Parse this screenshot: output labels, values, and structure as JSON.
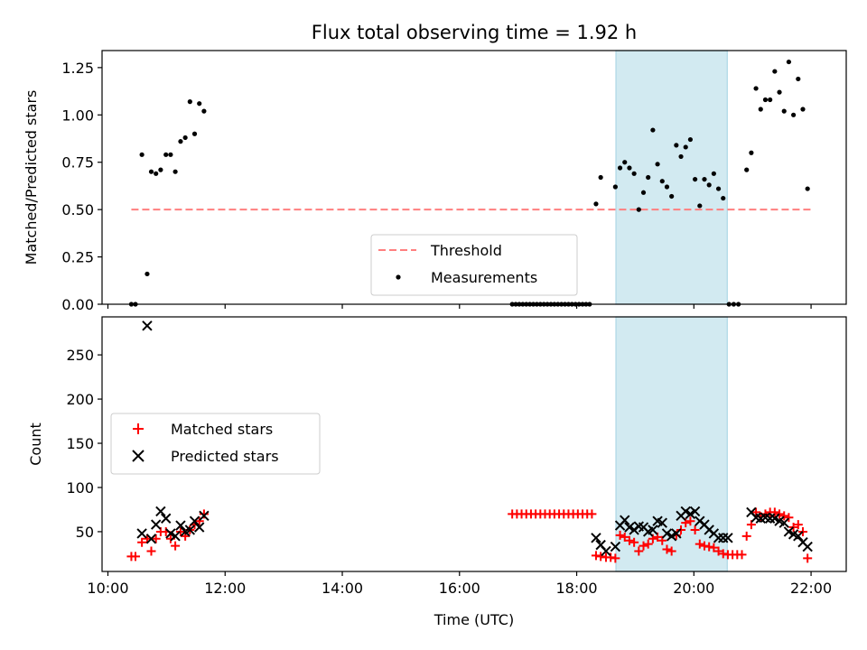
{
  "title": "Flux total observing time = 1.92 h",
  "colors": {
    "threshold": "#ff7f7f",
    "measurements": "#000000",
    "matched": "#ff0000",
    "predicted": "#000000",
    "shade": "#add8e6"
  },
  "chart_data": [
    {
      "type": "scatter",
      "panel": "top",
      "ylabel": "Matched/Predicted stars",
      "xlabel": "",
      "xlim": [
        9.9,
        22.6
      ],
      "ylim": [
        0,
        1.34
      ],
      "yticks": [
        0,
        0.25,
        0.5,
        0.75,
        1.0,
        1.25
      ],
      "ytick_labels": [
        "0.00",
        "0.25",
        "0.50",
        "0.75",
        "1.00",
        "1.25"
      ],
      "xticks": [
        10,
        12,
        14,
        16,
        18,
        20,
        22
      ],
      "shaded_region": [
        18.67,
        20.57
      ],
      "legend": {
        "location": "lower center",
        "entries": [
          {
            "label": "Threshold",
            "kind": "dashed-line",
            "color": "#ff7f7f"
          },
          {
            "label": "Measurements",
            "kind": "dot",
            "color": "#000000"
          }
        ]
      },
      "series": [
        {
          "name": "Threshold",
          "kind": "line",
          "x": [
            10.4,
            22.0
          ],
          "y": [
            0.5,
            0.5
          ]
        },
        {
          "name": "Measurements",
          "kind": "dot",
          "points": [
            [
              10.4,
              0.0
            ],
            [
              10.47,
              0.0
            ],
            [
              10.58,
              0.79
            ],
            [
              10.67,
              0.16
            ],
            [
              10.74,
              0.7
            ],
            [
              10.82,
              0.69
            ],
            [
              10.9,
              0.71
            ],
            [
              10.99,
              0.79
            ],
            [
              11.07,
              0.79
            ],
            [
              11.15,
              0.7
            ],
            [
              11.24,
              0.86
            ],
            [
              11.32,
              0.88
            ],
            [
              11.4,
              1.07
            ],
            [
              11.48,
              0.9
            ],
            [
              11.56,
              1.06
            ],
            [
              11.64,
              1.02
            ],
            [
              16.9,
              0.0
            ],
            [
              16.96,
              0.0
            ],
            [
              17.02,
              0.0
            ],
            [
              17.08,
              0.0
            ],
            [
              17.14,
              0.0
            ],
            [
              17.2,
              0.0
            ],
            [
              17.26,
              0.0
            ],
            [
              17.32,
              0.0
            ],
            [
              17.38,
              0.0
            ],
            [
              17.44,
              0.0
            ],
            [
              17.5,
              0.0
            ],
            [
              17.56,
              0.0
            ],
            [
              17.62,
              0.0
            ],
            [
              17.68,
              0.0
            ],
            [
              17.74,
              0.0
            ],
            [
              17.8,
              0.0
            ],
            [
              17.86,
              0.0
            ],
            [
              17.92,
              0.0
            ],
            [
              17.98,
              0.0
            ],
            [
              18.04,
              0.0
            ],
            [
              18.1,
              0.0
            ],
            [
              18.16,
              0.0
            ],
            [
              18.22,
              0.0
            ],
            [
              18.33,
              0.53
            ],
            [
              18.41,
              0.67
            ],
            [
              18.66,
              0.62
            ],
            [
              18.74,
              0.72
            ],
            [
              18.82,
              0.75
            ],
            [
              18.9,
              0.72
            ],
            [
              18.98,
              0.69
            ],
            [
              19.06,
              0.5
            ],
            [
              19.14,
              0.59
            ],
            [
              19.22,
              0.67
            ],
            [
              19.3,
              0.92
            ],
            [
              19.38,
              0.74
            ],
            [
              19.46,
              0.65
            ],
            [
              19.54,
              0.62
            ],
            [
              19.62,
              0.57
            ],
            [
              19.7,
              0.84
            ],
            [
              19.78,
              0.78
            ],
            [
              19.86,
              0.83
            ],
            [
              19.94,
              0.87
            ],
            [
              20.02,
              0.66
            ],
            [
              20.1,
              0.52
            ],
            [
              20.18,
              0.66
            ],
            [
              20.26,
              0.63
            ],
            [
              20.34,
              0.69
            ],
            [
              20.42,
              0.61
            ],
            [
              20.5,
              0.56
            ],
            [
              20.6,
              0.0
            ],
            [
              20.68,
              0.0
            ],
            [
              20.76,
              0.0
            ],
            [
              20.9,
              0.71
            ],
            [
              20.98,
              0.8
            ],
            [
              21.06,
              1.14
            ],
            [
              21.14,
              1.03
            ],
            [
              21.22,
              1.08
            ],
            [
              21.3,
              1.08
            ],
            [
              21.38,
              1.23
            ],
            [
              21.46,
              1.12
            ],
            [
              21.54,
              1.02
            ],
            [
              21.62,
              1.28
            ],
            [
              21.7,
              1.0
            ],
            [
              21.78,
              1.19
            ],
            [
              21.86,
              1.03
            ],
            [
              21.94,
              0.61
            ]
          ]
        }
      ]
    },
    {
      "type": "scatter",
      "panel": "bottom",
      "ylabel": "Count",
      "xlabel": "Time (UTC)",
      "xlim": [
        9.9,
        22.6
      ],
      "ylim": [
        5,
        293
      ],
      "yticks": [
        50,
        100,
        150,
        200,
        250
      ],
      "ytick_labels": [
        "50",
        "100",
        "150",
        "200",
        "250"
      ],
      "xticks": [
        10,
        12,
        14,
        16,
        18,
        20,
        22
      ],
      "xtick_labels": [
        "10:00",
        "12:00",
        "14:00",
        "16:00",
        "18:00",
        "20:00",
        "22:00"
      ],
      "shaded_region": [
        18.67,
        20.57
      ],
      "legend": {
        "location": "center left",
        "entries": [
          {
            "label": "Matched stars",
            "kind": "plus",
            "color": "#ff0000"
          },
          {
            "label": "Predicted stars",
            "kind": "x",
            "color": "#000000"
          }
        ]
      },
      "series": [
        {
          "name": "Matched stars",
          "kind": "plus",
          "points": [
            [
              10.4,
              22
            ],
            [
              10.47,
              22
            ],
            [
              10.58,
              38
            ],
            [
              10.67,
              42
            ],
            [
              10.74,
              28
            ],
            [
              10.82,
              42
            ],
            [
              10.9,
              50
            ],
            [
              10.99,
              50
            ],
            [
              11.07,
              42
            ],
            [
              11.15,
              34
            ],
            [
              11.24,
              50
            ],
            [
              11.32,
              45
            ],
            [
              11.4,
              52
            ],
            [
              11.48,
              58
            ],
            [
              11.56,
              62
            ],
            [
              11.64,
              70
            ],
            [
              16.9,
              70
            ],
            [
              16.98,
              70
            ],
            [
              17.06,
              70
            ],
            [
              17.14,
              70
            ],
            [
              17.22,
              70
            ],
            [
              17.3,
              70
            ],
            [
              17.38,
              70
            ],
            [
              17.46,
              70
            ],
            [
              17.54,
              70
            ],
            [
              17.62,
              70
            ],
            [
              17.7,
              70
            ],
            [
              17.78,
              70
            ],
            [
              17.86,
              70
            ],
            [
              17.94,
              70
            ],
            [
              18.02,
              70
            ],
            [
              18.1,
              70
            ],
            [
              18.18,
              70
            ],
            [
              18.26,
              70
            ],
            [
              18.33,
              23
            ],
            [
              18.41,
              22
            ],
            [
              18.5,
              21
            ],
            [
              18.58,
              21
            ],
            [
              18.66,
              20
            ],
            [
              18.74,
              46
            ],
            [
              18.82,
              44
            ],
            [
              18.9,
              40
            ],
            [
              18.98,
              38
            ],
            [
              19.06,
              28
            ],
            [
              19.14,
              34
            ],
            [
              19.22,
              36
            ],
            [
              19.3,
              42
            ],
            [
              19.38,
              44
            ],
            [
              19.46,
              40
            ],
            [
              19.54,
              30
            ],
            [
              19.62,
              28
            ],
            [
              19.7,
              46
            ],
            [
              19.78,
              52
            ],
            [
              19.86,
              60
            ],
            [
              19.94,
              62
            ],
            [
              20.02,
              52
            ],
            [
              20.1,
              36
            ],
            [
              20.18,
              34
            ],
            [
              20.26,
              33
            ],
            [
              20.34,
              32
            ],
            [
              20.42,
              28
            ],
            [
              20.5,
              25
            ],
            [
              20.58,
              24
            ],
            [
              20.66,
              24
            ],
            [
              20.74,
              24
            ],
            [
              20.82,
              24
            ],
            [
              20.9,
              45
            ],
            [
              20.98,
              58
            ],
            [
              21.06,
              72
            ],
            [
              21.14,
              67
            ],
            [
              21.22,
              70
            ],
            [
              21.3,
              72
            ],
            [
              21.38,
              72
            ],
            [
              21.46,
              70
            ],
            [
              21.54,
              68
            ],
            [
              21.62,
              66
            ],
            [
              21.7,
              55
            ],
            [
              21.78,
              58
            ],
            [
              21.86,
              50
            ],
            [
              21.94,
              20
            ]
          ]
        },
        {
          "name": "Predicted stars",
          "kind": "x",
          "points": [
            [
              10.58,
              48
            ],
            [
              10.67,
              283
            ],
            [
              10.74,
              42
            ],
            [
              10.82,
              58
            ],
            [
              10.9,
              73
            ],
            [
              10.99,
              65
            ],
            [
              11.07,
              48
            ],
            [
              11.15,
              45
            ],
            [
              11.24,
              57
            ],
            [
              11.32,
              50
            ],
            [
              11.4,
              52
            ],
            [
              11.48,
              62
            ],
            [
              11.56,
              55
            ],
            [
              11.64,
              68
            ],
            [
              18.33,
              43
            ],
            [
              18.41,
              35
            ],
            [
              18.5,
              28
            ],
            [
              18.66,
              33
            ],
            [
              18.74,
              57
            ],
            [
              18.82,
              63
            ],
            [
              18.9,
              55
            ],
            [
              18.98,
              52
            ],
            [
              19.06,
              56
            ],
            [
              19.14,
              55
            ],
            [
              19.22,
              50
            ],
            [
              19.3,
              52
            ],
            [
              19.38,
              62
            ],
            [
              19.46,
              60
            ],
            [
              19.54,
              48
            ],
            [
              19.62,
              45
            ],
            [
              19.7,
              48
            ],
            [
              19.78,
              68
            ],
            [
              19.86,
              73
            ],
            [
              19.94,
              70
            ],
            [
              20.02,
              73
            ],
            [
              20.1,
              62
            ],
            [
              20.18,
              58
            ],
            [
              20.26,
              52
            ],
            [
              20.34,
              48
            ],
            [
              20.42,
              43
            ],
            [
              20.5,
              43
            ],
            [
              20.58,
              43
            ],
            [
              20.98,
              72
            ],
            [
              21.06,
              66
            ],
            [
              21.14,
              65
            ],
            [
              21.22,
              66
            ],
            [
              21.3,
              65
            ],
            [
              21.38,
              65
            ],
            [
              21.46,
              62
            ],
            [
              21.54,
              60
            ],
            [
              21.62,
              50
            ],
            [
              21.7,
              47
            ],
            [
              21.78,
              45
            ],
            [
              21.86,
              38
            ],
            [
              21.94,
              33
            ]
          ]
        }
      ]
    }
  ]
}
